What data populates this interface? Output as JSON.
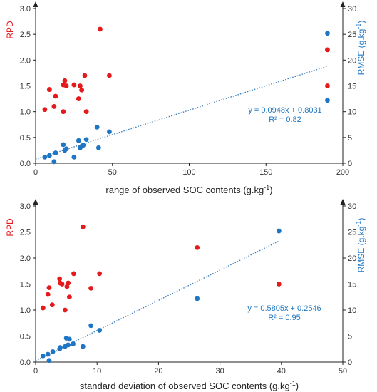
{
  "colors": {
    "rpd": "#e41a1c",
    "rmse": "#1f77c4",
    "axis": "#222222",
    "trend": "#3f7fbf"
  },
  "chart_data": [
    {
      "type": "scatter",
      "xlabel": "range of observed SOC contents (g.kg",
      "xlabel_sup": "-1",
      "xlabel_end": ")",
      "ylabel": "RPD",
      "y2label": "RMSE (g.kg",
      "y2label_sup": "-1",
      "y2label_end": ")",
      "xlim": [
        0,
        200
      ],
      "ylim": [
        0,
        3
      ],
      "y2lim": [
        0,
        30
      ],
      "xticks": [
        "0",
        "50",
        "100",
        "150",
        "200"
      ],
      "yticks": [
        "0.0",
        "0.5",
        "1.0",
        "1.5",
        "2.0",
        "2.5",
        "3.0"
      ],
      "y2ticks": [
        "0",
        "5",
        "10",
        "15",
        "20",
        "25",
        "30"
      ],
      "series": [
        {
          "axis": "left",
          "color": "#e41a1c",
          "points": [
            [
              6,
              1.04
            ],
            [
              9,
              1.43
            ],
            [
              12,
              1.1
            ],
            [
              13,
              1.3
            ],
            [
              18,
              1.0
            ],
            [
              19,
              1.6
            ],
            [
              18,
              1.52
            ],
            [
              20,
              1.5
            ],
            [
              25,
              1.52
            ],
            [
              28,
              1.25
            ],
            [
              29,
              1.5
            ],
            [
              30,
              1.42
            ],
            [
              32,
              1.7
            ],
            [
              33,
              1.0
            ],
            [
              42,
              2.6
            ],
            [
              48,
              1.7
            ],
            [
              190,
              2.2
            ],
            [
              190,
              1.5
            ]
          ]
        },
        {
          "axis": "right",
          "color": "#1f77c4",
          "points": [
            [
              6,
              1.2
            ],
            [
              9,
              1.5
            ],
            [
              12,
              0.3
            ],
            [
              13,
              2.0
            ],
            [
              18,
              3.6
            ],
            [
              19,
              2.5
            ],
            [
              20,
              2.8
            ],
            [
              25,
              1.2
            ],
            [
              28,
              4.4
            ],
            [
              30,
              3.3
            ],
            [
              29,
              3.0
            ],
            [
              31,
              3.5
            ],
            [
              33,
              4.6
            ],
            [
              40,
              7.0
            ],
            [
              41,
              3.0
            ],
            [
              48,
              6.1
            ],
            [
              190,
              25.2
            ],
            [
              190,
              12.2
            ]
          ]
        }
      ],
      "trendline": {
        "x": [
          0,
          190
        ],
        "slope": 0.0948,
        "intercept": 0.8031
      },
      "equation": "y = 0.0948x + 0.8031",
      "r2": "R² = 0.82"
    },
    {
      "type": "scatter",
      "xlabel": "standard deviation of observed SOC contents (g.kg",
      "xlabel_sup": "-1",
      "xlabel_end": ")",
      "ylabel": "RPD",
      "y2label": "RMSE (g.kg",
      "y2label_sup": "-1",
      "y2label_end": ")",
      "xlim": [
        0,
        50
      ],
      "ylim": [
        0,
        3
      ],
      "y2lim": [
        0,
        30
      ],
      "xticks": [
        "0",
        "10",
        "20",
        "30",
        "40",
        "50"
      ],
      "yticks": [
        "0.0",
        "0.5",
        "1.0",
        "1.5",
        "2.0",
        "2.5",
        "3.0"
      ],
      "y2ticks": [
        "0",
        "5",
        "10",
        "15",
        "20",
        "25",
        "30"
      ],
      "series": [
        {
          "axis": "left",
          "color": "#e41a1c",
          "points": [
            [
              1.2,
              1.04
            ],
            [
              2.0,
              1.3
            ],
            [
              2.2,
              1.43
            ],
            [
              2.7,
              1.1
            ],
            [
              3.9,
              1.6
            ],
            [
              4.0,
              1.52
            ],
            [
              4.3,
              1.5
            ],
            [
              4.8,
              1.0
            ],
            [
              5.1,
              1.45
            ],
            [
              5.3,
              1.52
            ],
            [
              5.5,
              1.25
            ],
            [
              6.2,
              1.7
            ],
            [
              7.7,
              2.6
            ],
            [
              9.0,
              1.42
            ],
            [
              10.4,
              1.7
            ],
            [
              26.3,
              2.2
            ],
            [
              39.6,
              1.5
            ]
          ]
        },
        {
          "axis": "right",
          "color": "#1f77c4",
          "points": [
            [
              1.2,
              1.2
            ],
            [
              2.0,
              1.5
            ],
            [
              2.2,
              0.3
            ],
            [
              2.8,
              2.0
            ],
            [
              3.9,
              2.5
            ],
            [
              4.0,
              2.8
            ],
            [
              4.8,
              3.0
            ],
            [
              5.0,
              4.6
            ],
            [
              5.3,
              3.3
            ],
            [
              5.5,
              4.4
            ],
            [
              6.1,
              3.5
            ],
            [
              7.7,
              3.0
            ],
            [
              9.0,
              7.0
            ],
            [
              10.4,
              6.1
            ],
            [
              26.3,
              12.2
            ],
            [
              39.6,
              25.2
            ]
          ]
        }
      ],
      "trendline": {
        "x": [
          0,
          39.6
        ],
        "slope": 0.5805,
        "intercept": 0.2546
      },
      "equation": "y = 0.5805x + 0.2546",
      "r2": "R² = 0.95"
    }
  ]
}
